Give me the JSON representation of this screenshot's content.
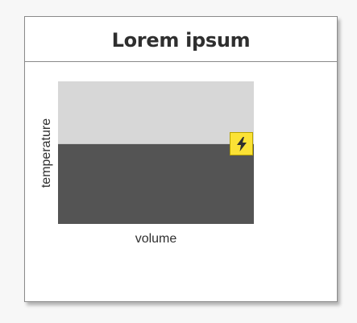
{
  "card": {
    "title": "Lorem ipsum"
  },
  "chart_data": {
    "type": "area",
    "xlabel": "volume",
    "ylabel": "temperature",
    "level": 0.56,
    "colors": {
      "background": "#d7d7d7",
      "fill": "#545454"
    }
  },
  "badge": {
    "icon": "lightning-bolt-icon",
    "color": "#fbe235"
  }
}
